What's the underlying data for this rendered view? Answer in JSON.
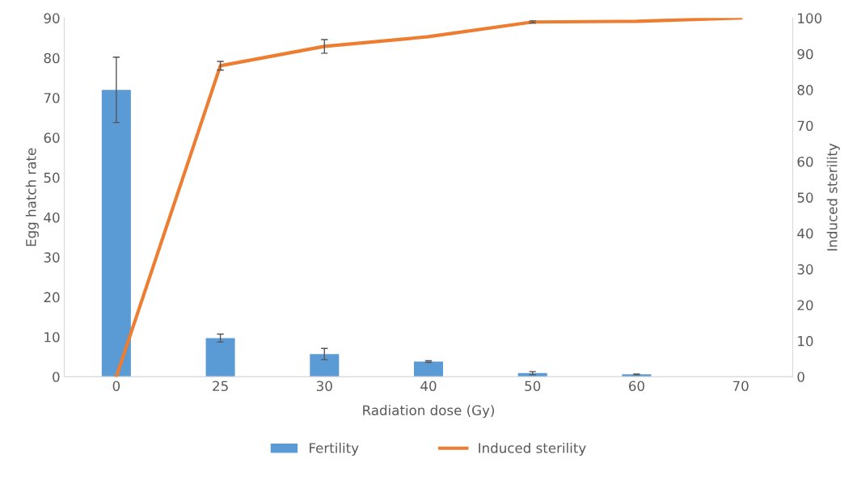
{
  "chart_data": {
    "type": "bar",
    "xlabel": "Radiation dose (Gy)",
    "ylabel": "Egg hatch rate",
    "y2label": "Induced sterility",
    "categories": [
      "0",
      "25",
      "30",
      "40",
      "50",
      "60",
      "70"
    ],
    "series": [
      {
        "name": "Fertility",
        "color": "#5b9bd5",
        "values": [
          72,
          9.7,
          5.7,
          3.8,
          0.9,
          0.6,
          0
        ],
        "errors": [
          8.2,
          1,
          1.4,
          0.2,
          0.4,
          0.1,
          null
        ]
      },
      {
        "name": "Induced sterility",
        "type": "line",
        "axis": "y2",
        "color": "#ed7d31",
        "values": [
          0,
          86.7,
          92.1,
          94.8,
          98.9,
          99.1,
          100
        ],
        "errors": [
          null,
          1.2,
          1.9,
          null,
          0.3,
          null,
          null
        ]
      }
    ],
    "ylim": [
      0,
      90
    ],
    "yticks": [
      0,
      10,
      20,
      30,
      40,
      50,
      60,
      70,
      80,
      90
    ],
    "y2lim": [
      0,
      100
    ],
    "y2ticks": [
      0,
      10,
      20,
      30,
      40,
      50,
      60,
      70,
      80,
      90,
      100
    ],
    "grid": false,
    "legend": "bottom",
    "marker": "none",
    "line_style": "solid"
  }
}
